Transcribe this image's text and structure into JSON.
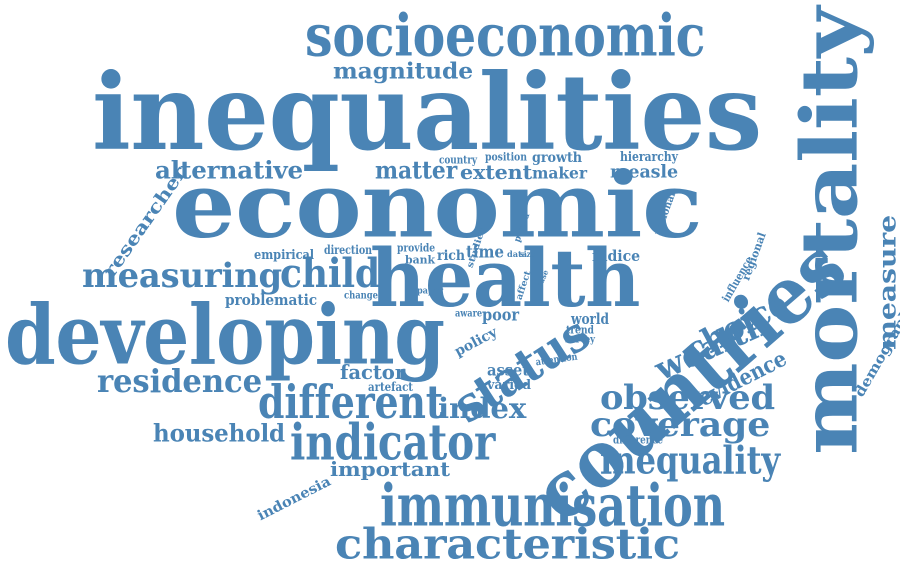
{
  "palette": {
    "word": "#4a84b5",
    "background": "#ffffff"
  },
  "words": [
    {
      "id": "inequalities",
      "text": "inequalities"
    },
    {
      "id": "economic",
      "text": "economic"
    },
    {
      "id": "socioeconomic",
      "text": "socioeconomic"
    },
    {
      "id": "mortality",
      "text": "mortality"
    },
    {
      "id": "countries",
      "text": "countries"
    },
    {
      "id": "developing",
      "text": "developing"
    },
    {
      "id": "health",
      "text": "health"
    },
    {
      "id": "immunisation",
      "text": "immunisation"
    },
    {
      "id": "characteristic",
      "text": "characteristic"
    },
    {
      "id": "indicator",
      "text": "indicator"
    },
    {
      "id": "different",
      "text": "different"
    },
    {
      "id": "status",
      "text": "status"
    },
    {
      "id": "measuring",
      "text": "measuring"
    },
    {
      "id": "child",
      "text": "child"
    },
    {
      "id": "residence",
      "text": "residence"
    },
    {
      "id": "inequality",
      "text": "inequality"
    },
    {
      "id": "observed",
      "text": "observed"
    },
    {
      "id": "coverage",
      "text": "coverage"
    },
    {
      "id": "wealth",
      "text": "wealth"
    },
    {
      "id": "choice",
      "text": "choice"
    },
    {
      "id": "magnitude",
      "text": "magnitude"
    },
    {
      "id": "alternative",
      "text": "alternative"
    },
    {
      "id": "matter",
      "text": "matter"
    },
    {
      "id": "extent",
      "text": "extent"
    },
    {
      "id": "household",
      "text": "household"
    },
    {
      "id": "index",
      "text": "index"
    },
    {
      "id": "important",
      "text": "important"
    },
    {
      "id": "measure",
      "text": "measure"
    },
    {
      "id": "evidence",
      "text": "evidence"
    },
    {
      "id": "researcher",
      "text": "researcher"
    },
    {
      "id": "measle",
      "text": "measle"
    },
    {
      "id": "maker",
      "text": "maker"
    },
    {
      "id": "growth",
      "text": "growth"
    },
    {
      "id": "hierarchy",
      "text": "hierarchy"
    },
    {
      "id": "position",
      "text": "position"
    },
    {
      "id": "country",
      "text": "country"
    },
    {
      "id": "empirical",
      "text": "empirical"
    },
    {
      "id": "direction",
      "text": "direction"
    },
    {
      "id": "provide",
      "text": "provide"
    },
    {
      "id": "rich",
      "text": "rich"
    },
    {
      "id": "time",
      "text": "time"
    },
    {
      "id": "bank",
      "text": "bank"
    },
    {
      "id": "indice",
      "text": "indice"
    },
    {
      "id": "problematic",
      "text": "problematic"
    },
    {
      "id": "change",
      "text": "change"
    },
    {
      "id": "paper",
      "text": "paper"
    },
    {
      "id": "aware",
      "text": "aware"
    },
    {
      "id": "poor",
      "text": "poor"
    },
    {
      "id": "world",
      "text": "world"
    },
    {
      "id": "trend",
      "text": "trend"
    },
    {
      "id": "survey",
      "text": "survey"
    },
    {
      "id": "policy",
      "text": "policy"
    },
    {
      "id": "factor",
      "text": "factor"
    },
    {
      "id": "asset",
      "text": "asset"
    },
    {
      "id": "artefact",
      "text": "artefact"
    },
    {
      "id": "varied",
      "text": "varied"
    },
    {
      "id": "attention",
      "text": "attention"
    },
    {
      "id": "difference",
      "text": "difference"
    },
    {
      "id": "indonesia",
      "text": "indonesia"
    },
    {
      "id": "demographic",
      "text": "demographic"
    },
    {
      "id": "national",
      "text": "national"
    },
    {
      "id": "influence",
      "text": "influence"
    },
    {
      "id": "regional",
      "text": "regional"
    },
    {
      "id": "studies",
      "text": "studies"
    },
    {
      "id": "period",
      "text": "period"
    },
    {
      "id": "data",
      "text": "data"
    },
    {
      "id": "size",
      "text": "size"
    },
    {
      "id": "affect",
      "text": "affect"
    },
    {
      "id": "case",
      "text": "case"
    }
  ]
}
